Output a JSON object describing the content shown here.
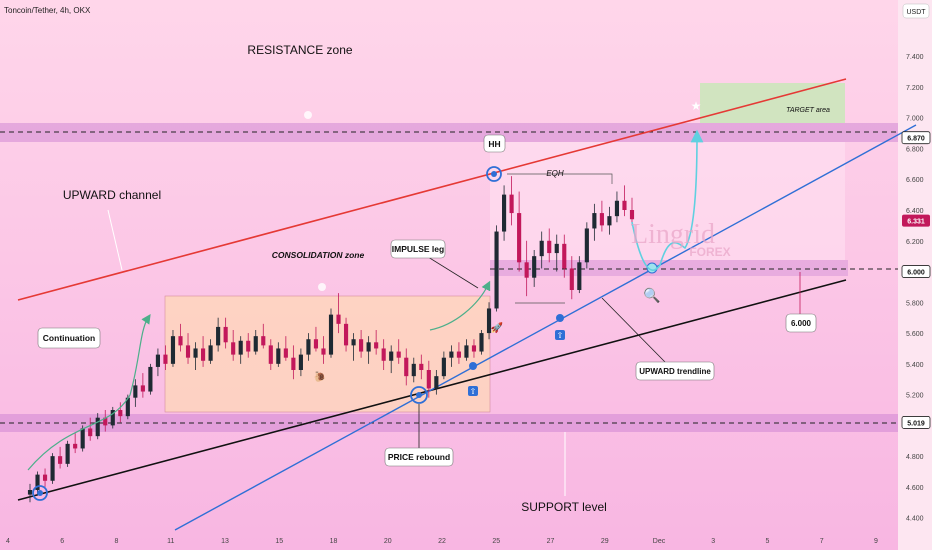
{
  "symbol": "Toncoin/Tether, 4h, OKX",
  "currency": "USDT",
  "colors": {
    "bg_top": "#ffd6ea",
    "bg_bottom": "#f8b6e2",
    "bull": "#1e2a33",
    "bear": "#c2185b",
    "channel_top": "#e53935",
    "channel_bottom": "#111111",
    "trendline": "#2f6fd6",
    "accent_green": "#4caf8a",
    "accent_cyan": "#5fd0e0"
  },
  "annotations": {
    "resistance": "RESISTANCE zone",
    "upward_channel": "UPWARD channel",
    "consolidation": "CONSOLIDATION zone",
    "continuation": "Continuation",
    "impulse": "IMPULSE leg",
    "hh": "HH",
    "eqh": "EQH",
    "target": "TARGET area",
    "upward_trendline": "UPWARD trendline",
    "price_rebound": "PRICE rebound",
    "support": "SUPPORT level",
    "level_callout": "6.000",
    "watermark": "Lingrid",
    "watermark_sub": "FOREX"
  },
  "chart_data": {
    "type": "candlestick",
    "title": "Toncoin/Tether, 4h, OKX",
    "ylabel": "USDT",
    "ylim": [
      4.32,
      7.7
    ],
    "y_ticks": [
      "7.400",
      "7.200",
      "7.000",
      "6.800",
      "6.600",
      "6.400",
      "6.200",
      "5.800",
      "5.600",
      "5.400",
      "5.200",
      "4.800",
      "4.600",
      "4.400"
    ],
    "x_ticks": [
      "4",
      "6",
      "8",
      "11",
      "13",
      "15",
      "18",
      "20",
      "22",
      "25",
      "27",
      "29",
      "Dec",
      "3",
      "5",
      "7",
      "9"
    ],
    "price_labels": [
      {
        "value": 6.87,
        "text": "6.870",
        "style": "level"
      },
      {
        "value": 6.331,
        "text": "6.331",
        "style": "current"
      },
      {
        "value": 6.0,
        "text": "6.000",
        "style": "level"
      },
      {
        "value": 5.019,
        "text": "5.019",
        "style": "level"
      }
    ],
    "levels": [
      6.87,
      6.0,
      5.019
    ],
    "ohlc": [
      [
        4.55,
        4.62,
        4.5,
        4.58
      ],
      [
        4.58,
        4.7,
        4.55,
        4.68
      ],
      [
        4.68,
        4.72,
        4.6,
        4.64
      ],
      [
        4.64,
        4.82,
        4.62,
        4.8
      ],
      [
        4.8,
        4.86,
        4.72,
        4.75
      ],
      [
        4.75,
        4.9,
        4.73,
        4.88
      ],
      [
        4.88,
        4.95,
        4.82,
        4.85
      ],
      [
        4.85,
        5.0,
        4.83,
        4.98
      ],
      [
        4.98,
        5.05,
        4.9,
        4.93
      ],
      [
        4.93,
        5.08,
        4.91,
        5.05
      ],
      [
        5.05,
        5.1,
        4.96,
        5.0
      ],
      [
        5.0,
        5.12,
        4.98,
        5.1
      ],
      [
        5.1,
        5.15,
        5.02,
        5.06
      ],
      [
        5.06,
        5.2,
        5.04,
        5.18
      ],
      [
        5.18,
        5.3,
        5.12,
        5.26
      ],
      [
        5.26,
        5.34,
        5.18,
        5.22
      ],
      [
        5.22,
        5.4,
        5.2,
        5.38
      ],
      [
        5.38,
        5.5,
        5.32,
        5.46
      ],
      [
        5.46,
        5.52,
        5.36,
        5.4
      ],
      [
        5.4,
        5.62,
        5.38,
        5.58
      ],
      [
        5.58,
        5.66,
        5.48,
        5.52
      ],
      [
        5.52,
        5.6,
        5.4,
        5.44
      ],
      [
        5.44,
        5.54,
        5.36,
        5.5
      ],
      [
        5.5,
        5.58,
        5.38,
        5.42
      ],
      [
        5.42,
        5.56,
        5.4,
        5.52
      ],
      [
        5.52,
        5.7,
        5.48,
        5.64
      ],
      [
        5.64,
        5.7,
        5.5,
        5.54
      ],
      [
        5.54,
        5.62,
        5.42,
        5.46
      ],
      [
        5.46,
        5.58,
        5.4,
        5.55
      ],
      [
        5.55,
        5.6,
        5.44,
        5.48
      ],
      [
        5.48,
        5.62,
        5.46,
        5.58
      ],
      [
        5.58,
        5.66,
        5.5,
        5.52
      ],
      [
        5.52,
        5.56,
        5.36,
        5.4
      ],
      [
        5.4,
        5.54,
        5.38,
        5.5
      ],
      [
        5.5,
        5.58,
        5.42,
        5.44
      ],
      [
        5.44,
        5.52,
        5.3,
        5.36
      ],
      [
        5.36,
        5.5,
        5.32,
        5.46
      ],
      [
        5.46,
        5.6,
        5.42,
        5.56
      ],
      [
        5.56,
        5.64,
        5.48,
        5.5
      ],
      [
        5.5,
        5.58,
        5.4,
        5.46
      ],
      [
        5.46,
        5.76,
        5.44,
        5.72
      ],
      [
        5.72,
        5.86,
        5.6,
        5.66
      ],
      [
        5.66,
        5.7,
        5.48,
        5.52
      ],
      [
        5.52,
        5.6,
        5.42,
        5.56
      ],
      [
        5.56,
        5.62,
        5.44,
        5.48
      ],
      [
        5.48,
        5.58,
        5.4,
        5.54
      ],
      [
        5.54,
        5.62,
        5.46,
        5.5
      ],
      [
        5.5,
        5.56,
        5.36,
        5.42
      ],
      [
        5.42,
        5.52,
        5.34,
        5.48
      ],
      [
        5.48,
        5.56,
        5.4,
        5.44
      ],
      [
        5.44,
        5.5,
        5.26,
        5.32
      ],
      [
        5.32,
        5.44,
        5.28,
        5.4
      ],
      [
        5.4,
        5.46,
        5.3,
        5.36
      ],
      [
        5.36,
        5.42,
        5.18,
        5.24
      ],
      [
        5.24,
        5.36,
        5.2,
        5.32
      ],
      [
        5.32,
        5.48,
        5.3,
        5.44
      ],
      [
        5.44,
        5.52,
        5.38,
        5.48
      ],
      [
        5.48,
        5.54,
        5.4,
        5.44
      ],
      [
        5.44,
        5.56,
        5.42,
        5.52
      ],
      [
        5.52,
        5.56,
        5.44,
        5.48
      ],
      [
        5.48,
        5.62,
        5.46,
        5.6
      ],
      [
        5.6,
        5.8,
        5.56,
        5.76
      ],
      [
        5.76,
        6.3,
        5.74,
        6.26
      ],
      [
        6.26,
        6.56,
        6.2,
        6.5
      ],
      [
        6.5,
        6.62,
        6.3,
        6.38
      ],
      [
        6.38,
        6.52,
        6.0,
        6.06
      ],
      [
        6.06,
        6.2,
        5.84,
        5.96
      ],
      [
        5.96,
        6.14,
        5.9,
        6.1
      ],
      [
        6.1,
        6.26,
        6.02,
        6.2
      ],
      [
        6.2,
        6.28,
        6.06,
        6.12
      ],
      [
        6.12,
        6.24,
        6.0,
        6.18
      ],
      [
        6.18,
        6.24,
        5.96,
        6.02
      ],
      [
        6.02,
        6.1,
        5.82,
        5.88
      ],
      [
        5.88,
        6.1,
        5.86,
        6.06
      ],
      [
        6.06,
        6.32,
        6.02,
        6.28
      ],
      [
        6.28,
        6.44,
        6.2,
        6.38
      ],
      [
        6.38,
        6.46,
        6.26,
        6.3
      ],
      [
        6.3,
        6.42,
        6.24,
        6.36
      ],
      [
        6.36,
        6.52,
        6.32,
        6.46
      ],
      [
        6.46,
        6.56,
        6.36,
        6.4
      ],
      [
        6.4,
        6.48,
        6.3,
        6.34
      ]
    ]
  }
}
